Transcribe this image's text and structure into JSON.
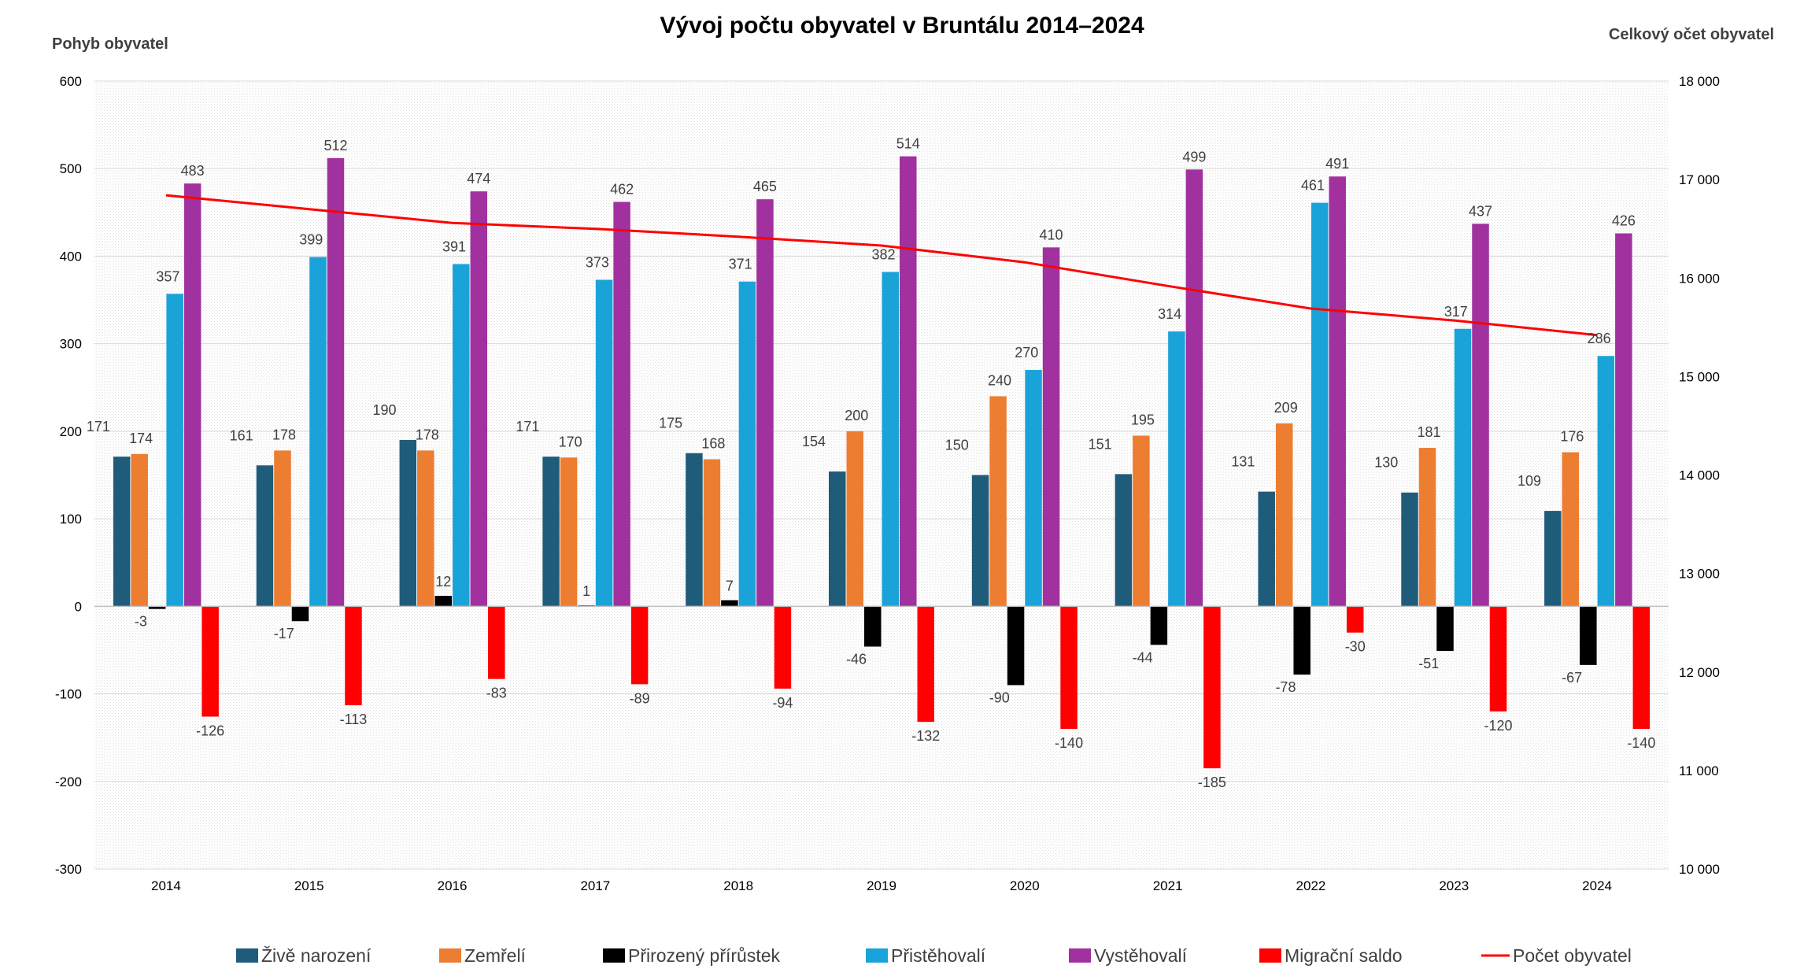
{
  "chart_data": {
    "type": "bar",
    "title": "Vývoj počtu obyvatel v Bruntálu 2014–2024",
    "ylabel": "Pohyb obyvatel",
    "y2label": "Celkový očet obyvatel",
    "ylim": [
      -300,
      600
    ],
    "y2lim": [
      10000,
      18000
    ],
    "yticks": [
      "600",
      "500",
      "400",
      "300",
      "200",
      "100",
      "0",
      "-100",
      "-200",
      "-300"
    ],
    "y2ticks": [
      "18 000",
      "17 000",
      "16 000",
      "15 000",
      "14 000",
      "13 000",
      "12 000",
      "11 000",
      "10 000"
    ],
    "categories": [
      "2014",
      "2015",
      "2016",
      "2017",
      "2018",
      "2019",
      "2020",
      "2021",
      "2022",
      "2023",
      "2024"
    ],
    "series": [
      {
        "name": "Živě narození",
        "color": "#1f5c7a",
        "values": [
          171,
          161,
          190,
          171,
          175,
          154,
          150,
          151,
          131,
          130,
          109
        ]
      },
      {
        "name": "Zemřelí",
        "color": "#ed7d31",
        "values": [
          174,
          178,
          178,
          170,
          168,
          200,
          240,
          195,
          209,
          181,
          176
        ]
      },
      {
        "name": "Přirozený přírůstek",
        "color": "#000000",
        "values": [
          -3,
          -17,
          12,
          1,
          7,
          -46,
          -90,
          -44,
          -78,
          -51,
          -67
        ]
      },
      {
        "name": "Přistěhovalí",
        "color": "#1aa3d9",
        "values": [
          357,
          399,
          391,
          373,
          371,
          382,
          270,
          314,
          461,
          317,
          286
        ]
      },
      {
        "name": "Vystěhovalí",
        "color": "#a0319f",
        "values": [
          483,
          512,
          474,
          462,
          465,
          514,
          410,
          499,
          491,
          437,
          426
        ]
      },
      {
        "name": "Migrační saldo",
        "color": "#ff0000",
        "values": [
          -126,
          -113,
          -83,
          -89,
          -94,
          -132,
          -140,
          -185,
          -30,
          -120,
          -140
        ]
      }
    ],
    "line_series": {
      "name": "Počet obyvatel",
      "color": "#ff0000",
      "axis": "secondary",
      "values": [
        16840,
        16700,
        16560,
        16500,
        16420,
        16330,
        16160,
        15920,
        15690,
        15570,
        15420
      ]
    },
    "grid": true,
    "legend": "bottom"
  }
}
